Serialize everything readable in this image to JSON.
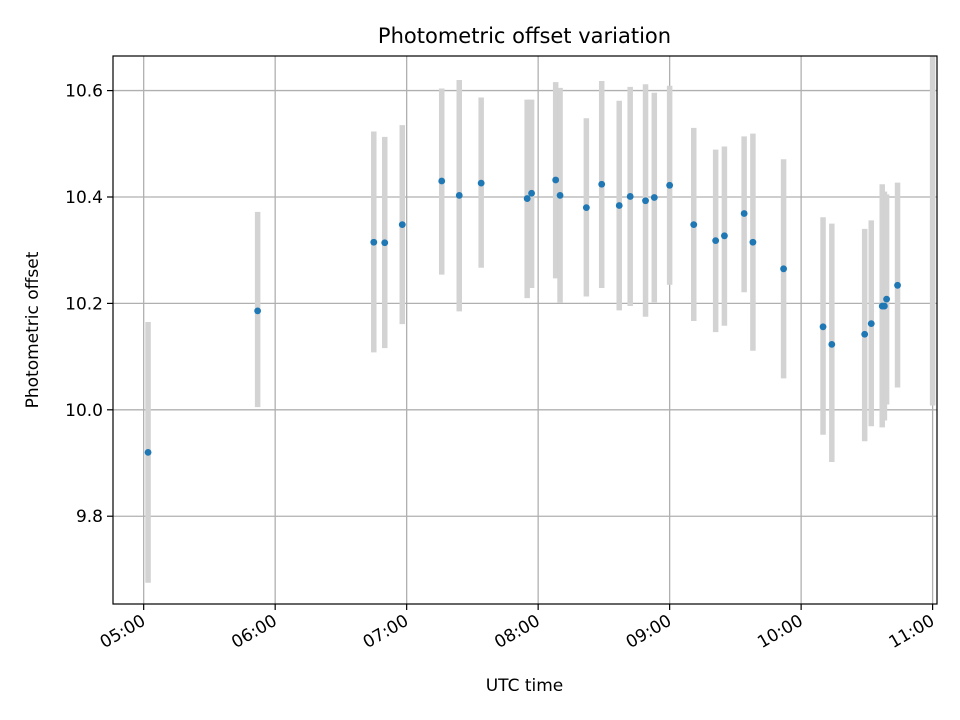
{
  "chart_data": {
    "type": "scatter",
    "title": "Photometric offset variation",
    "xlabel": "UTC time",
    "ylabel": "Photometric offset",
    "x_unit": "UTC clock time (HH:MM)",
    "xlim": [
      "04:46",
      "11:02"
    ],
    "ylim": [
      9.635,
      10.665
    ],
    "x_ticks": [
      "05:00",
      "06:00",
      "07:00",
      "08:00",
      "09:00",
      "10:00",
      "11:00"
    ],
    "y_ticks": [
      9.8,
      10.0,
      10.2,
      10.4,
      10.6
    ],
    "y_tick_labels": [
      "9.8",
      "10.0",
      "10.2",
      "10.4",
      "10.6"
    ],
    "grid": true,
    "x_tick_rotation": 30,
    "colors": {
      "point": "#1f77b4",
      "errorbar": "#d3d3d3",
      "grid": "#b0b0b0"
    },
    "points": [
      {
        "time": "05:02",
        "y": 9.92,
        "lo": 9.675,
        "hi": 10.165
      },
      {
        "time": "05:52",
        "y": 10.186,
        "lo": 10.005,
        "hi": 10.372
      },
      {
        "time": "06:45",
        "y": 10.315,
        "lo": 10.108,
        "hi": 10.523
      },
      {
        "time": "06:50",
        "y": 10.314,
        "lo": 10.116,
        "hi": 10.513
      },
      {
        "time": "06:58",
        "y": 10.348,
        "lo": 10.161,
        "hi": 10.535
      },
      {
        "time": "07:16",
        "y": 10.43,
        "lo": 10.254,
        "hi": 10.604
      },
      {
        "time": "07:24",
        "y": 10.403,
        "lo": 10.185,
        "hi": 10.62
      },
      {
        "time": "07:34",
        "y": 10.426,
        "lo": 10.267,
        "hi": 10.587
      },
      {
        "time": "07:55",
        "y": 10.397,
        "lo": 10.21,
        "hi": 10.583
      },
      {
        "time": "07:57",
        "y": 10.407,
        "lo": 10.229,
        "hi": 10.583
      },
      {
        "time": "08:08",
        "y": 10.432,
        "lo": 10.247,
        "hi": 10.616
      },
      {
        "time": "08:10",
        "y": 10.403,
        "lo": 10.201,
        "hi": 10.605
      },
      {
        "time": "08:22",
        "y": 10.38,
        "lo": 10.213,
        "hi": 10.548
      },
      {
        "time": "08:29",
        "y": 10.424,
        "lo": 10.229,
        "hi": 10.618
      },
      {
        "time": "08:37",
        "y": 10.384,
        "lo": 10.187,
        "hi": 10.581
      },
      {
        "time": "08:42",
        "y": 10.401,
        "lo": 10.195,
        "hi": 10.607
      },
      {
        "time": "08:49",
        "y": 10.393,
        "lo": 10.175,
        "hi": 10.612
      },
      {
        "time": "08:53",
        "y": 10.399,
        "lo": 10.202,
        "hi": 10.596
      },
      {
        "time": "09:00",
        "y": 10.422,
        "lo": 10.235,
        "hi": 10.609
      },
      {
        "time": "09:11",
        "y": 10.348,
        "lo": 10.167,
        "hi": 10.53
      },
      {
        "time": "09:21",
        "y": 10.318,
        "lo": 10.146,
        "hi": 10.489
      },
      {
        "time": "09:25",
        "y": 10.327,
        "lo": 10.158,
        "hi": 10.495
      },
      {
        "time": "09:34",
        "y": 10.369,
        "lo": 10.221,
        "hi": 10.514
      },
      {
        "time": "09:38",
        "y": 10.315,
        "lo": 10.111,
        "hi": 10.519
      },
      {
        "time": "09:52",
        "y": 10.265,
        "lo": 10.059,
        "hi": 10.471
      },
      {
        "time": "10:10",
        "y": 10.156,
        "lo": 9.953,
        "hi": 10.362
      },
      {
        "time": "10:14",
        "y": 10.123,
        "lo": 9.902,
        "hi": 10.35
      },
      {
        "time": "10:29",
        "y": 10.142,
        "lo": 9.941,
        "hi": 10.34
      },
      {
        "time": "10:32",
        "y": 10.162,
        "lo": 9.969,
        "hi": 10.356
      },
      {
        "time": "10:37",
        "y": 10.195,
        "lo": 9.967,
        "hi": 10.424
      },
      {
        "time": "10:38",
        "y": 10.195,
        "lo": 9.98,
        "hi": 10.41
      },
      {
        "time": "10:39",
        "y": 10.208,
        "lo": 10.01,
        "hi": 10.405
      },
      {
        "time": "10:44",
        "y": 10.234,
        "lo": 10.042,
        "hi": 10.427
      },
      {
        "time": "11:00",
        "y": null,
        "lo": 10.008,
        "hi": 10.665
      }
    ]
  }
}
